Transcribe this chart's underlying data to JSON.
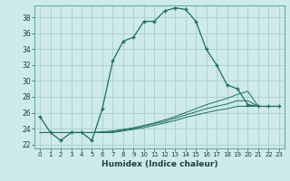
{
  "xlabel": "Humidex (Indice chaleur)",
  "bg_color": "#ceeaea",
  "grid_color": "#aacece",
  "line_color": "#1a7060",
  "xlim": [
    -0.5,
    23.5
  ],
  "ylim": [
    21.5,
    39.5
  ],
  "xticks": [
    0,
    1,
    2,
    3,
    4,
    5,
    6,
    7,
    8,
    9,
    10,
    11,
    12,
    13,
    14,
    15,
    16,
    17,
    18,
    19,
    20,
    21,
    22,
    23
  ],
  "yticks": [
    22,
    24,
    26,
    28,
    30,
    32,
    34,
    36,
    38
  ],
  "main_y": [
    25.5,
    23.5,
    22.5,
    23.5,
    23.5,
    22.5,
    26.5,
    32.5,
    35.0,
    35.5,
    37.5,
    37.5,
    38.8,
    39.2,
    39.0,
    37.5,
    34.0,
    32.0,
    29.5,
    29.0,
    27.0,
    26.8,
    26.8,
    26.8
  ],
  "line2_y": [
    23.5,
    23.5,
    23.5,
    23.5,
    23.5,
    23.5,
    23.6,
    23.7,
    23.9,
    24.1,
    24.4,
    24.7,
    25.1,
    25.5,
    26.0,
    26.5,
    27.0,
    27.4,
    27.8,
    28.3,
    28.7,
    26.8,
    26.8,
    26.8
  ],
  "line3_y": [
    23.5,
    23.5,
    23.5,
    23.5,
    23.5,
    23.5,
    23.5,
    23.6,
    23.8,
    24.0,
    24.3,
    24.6,
    24.9,
    25.3,
    25.7,
    26.1,
    26.5,
    26.8,
    27.1,
    27.5,
    27.5,
    26.8,
    26.8,
    26.8
  ],
  "line4_y": [
    23.5,
    23.5,
    23.5,
    23.5,
    23.5,
    23.5,
    23.5,
    23.5,
    23.7,
    23.9,
    24.1,
    24.4,
    24.7,
    25.0,
    25.4,
    25.7,
    26.0,
    26.3,
    26.5,
    26.8,
    26.8,
    26.8,
    26.8,
    26.8
  ]
}
